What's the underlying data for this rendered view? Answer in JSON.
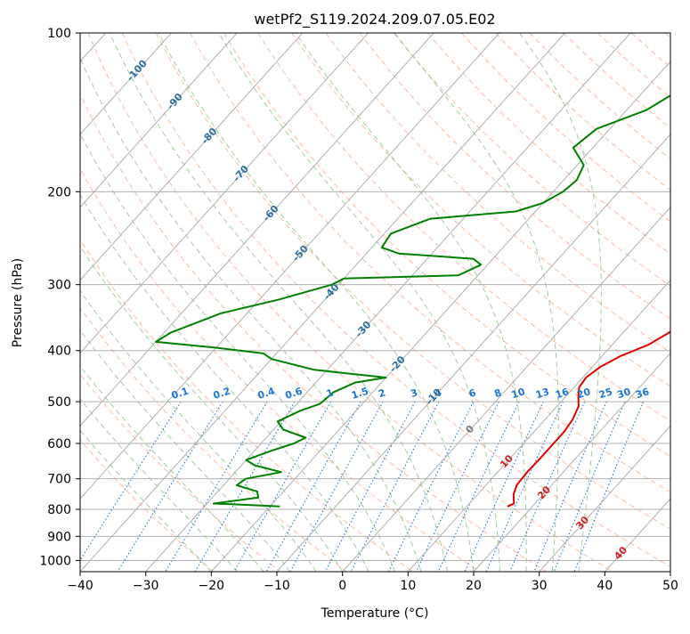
{
  "chart_data": {
    "type": "line",
    "subtype": "skew-t log-p diagram",
    "title": "wetPf2_S119.2024.209.07.05.E02",
    "xlabel": "Temperature (°C)",
    "ylabel": "Pressure (hPa)",
    "xlim": [
      -40,
      50
    ],
    "ylim": [
      1050,
      100
    ],
    "y_scale": "log",
    "grid": true,
    "x_ticks": [
      -40,
      -30,
      -20,
      -10,
      0,
      10,
      20,
      30,
      40,
      50
    ],
    "x_tick_labels": [
      "−40",
      "−30",
      "−20",
      "−10",
      "0",
      "10",
      "20",
      "30",
      "40",
      "50"
    ],
    "y_ticks": [
      100,
      200,
      300,
      400,
      500,
      600,
      700,
      800,
      900,
      1000
    ],
    "y_tick_labels": [
      "100",
      "200",
      "300",
      "400",
      "500",
      "600",
      "700",
      "800",
      "900",
      "1000"
    ],
    "colors": {
      "temperature": "#e00000",
      "dewpoint": "#008000",
      "dry_adiabat": "#f4a582",
      "moist_adiabat": "#88c088",
      "mixing_ratio": "#1f77d4",
      "isotherm": "#999999",
      "grid": "#b0b0b0",
      "iso_label": "#2c6f9e",
      "warm_iso_label": "#cc2222"
    },
    "series": [
      {
        "name": "temperature",
        "points": [
          [
            100,
            8.6
          ],
          [
            105,
            6.0
          ],
          [
            110,
            3.8
          ],
          [
            116,
            2.5
          ],
          [
            122,
            2.2
          ],
          [
            130,
            2.7
          ],
          [
            140,
            4.0
          ],
          [
            155,
            6.8
          ],
          [
            170,
            7.6
          ],
          [
            183,
            7.5
          ],
          [
            195,
            7.6
          ],
          [
            205,
            8.7
          ],
          [
            220,
            11.0
          ],
          [
            240,
            13.5
          ],
          [
            260,
            14.8
          ],
          [
            275,
            14.8
          ],
          [
            285,
            14.0
          ],
          [
            295,
            13.5
          ],
          [
            310,
            13.9
          ],
          [
            330,
            16.0
          ],
          [
            350,
            17.5
          ],
          [
            370,
            17.0
          ],
          [
            390,
            15.5
          ],
          [
            410,
            12.8
          ],
          [
            430,
            11.2
          ],
          [
            450,
            10.5
          ],
          [
            470,
            10.8
          ],
          [
            490,
            12.0
          ],
          [
            510,
            13.3
          ],
          [
            540,
            14.2
          ],
          [
            570,
            14.6
          ],
          [
            600,
            14.6
          ],
          [
            640,
            14.6
          ],
          [
            680,
            14.5
          ],
          [
            720,
            14.7
          ],
          [
            750,
            15.5
          ],
          [
            780,
            16.8
          ],
          [
            790,
            16.2
          ]
        ]
      },
      {
        "name": "dewpoint",
        "points": [
          [
            100,
            -10.0
          ],
          [
            110,
            -12.0
          ],
          [
            125,
            -14.0
          ],
          [
            140,
            -17.0
          ],
          [
            152,
            -22.0
          ],
          [
            165,
            -23.0
          ],
          [
            178,
            -19.0
          ],
          [
            190,
            -18.0
          ],
          [
            200,
            -18.5
          ],
          [
            210,
            -20.0
          ],
          [
            218,
            -23.0
          ],
          [
            225,
            -35.0
          ],
          [
            240,
            -39.0
          ],
          [
            255,
            -38.5
          ],
          [
            262,
            -35.0
          ],
          [
            268,
            -23.0
          ],
          [
            275,
            -21.0
          ],
          [
            288,
            -23.0
          ],
          [
            292,
            -40.0
          ],
          [
            300,
            -41.0
          ],
          [
            320,
            -47.0
          ],
          [
            340,
            -54.0
          ],
          [
            370,
            -59.0
          ],
          [
            385,
            -60.0
          ],
          [
            395,
            -50.0
          ],
          [
            405,
            -42.0
          ],
          [
            415,
            -40.0
          ],
          [
            435,
            -32.0
          ],
          [
            450,
            -20.0
          ],
          [
            460,
            -24.0
          ],
          [
            480,
            -26.0
          ],
          [
            505,
            -26.5
          ],
          [
            520,
            -28.5
          ],
          [
            545,
            -30.5
          ],
          [
            565,
            -28.5
          ],
          [
            585,
            -24.0
          ],
          [
            600,
            -25.0
          ],
          [
            620,
            -27.5
          ],
          [
            645,
            -30.0
          ],
          [
            660,
            -28.0
          ],
          [
            680,
            -23.0
          ],
          [
            700,
            -27.5
          ],
          [
            720,
            -28.0
          ],
          [
            740,
            -24.0
          ],
          [
            760,
            -23.0
          ],
          [
            780,
            -29.0
          ],
          [
            785,
            -23.0
          ],
          [
            790,
            -18.5
          ]
        ]
      }
    ],
    "annotations": {
      "isotherm_labels": [
        {
          "t": -100,
          "p": 118,
          "text": "-100"
        },
        {
          "t": -90,
          "p": 135,
          "text": "-90"
        },
        {
          "t": -80,
          "p": 157,
          "text": "-80"
        },
        {
          "t": -70,
          "p": 185,
          "text": "-70"
        },
        {
          "t": -60,
          "p": 220,
          "text": "-60"
        },
        {
          "t": -50,
          "p": 262,
          "text": "-50"
        },
        {
          "t": -40,
          "p": 310,
          "text": "-40"
        },
        {
          "t": -30,
          "p": 365,
          "text": "-30"
        },
        {
          "t": -20,
          "p": 425,
          "text": "-20"
        },
        {
          "t": -10,
          "p": 490,
          "text": "-10"
        },
        {
          "t": 0,
          "p": 565,
          "text": "0"
        },
        {
          "t": 10,
          "p": 650,
          "text": "10"
        },
        {
          "t": 20,
          "p": 745,
          "text": "20"
        },
        {
          "t": 30,
          "p": 850,
          "text": "30"
        },
        {
          "t": 40,
          "p": 970,
          "text": "40"
        }
      ],
      "mixing_ratio_labels": [
        "0.1",
        "0.2",
        "0.4",
        "0.6",
        "1",
        "1.5",
        "2",
        "3",
        "4",
        "6",
        "8",
        "10",
        "13",
        "16",
        "20",
        "25",
        "30",
        "36"
      ]
    }
  }
}
